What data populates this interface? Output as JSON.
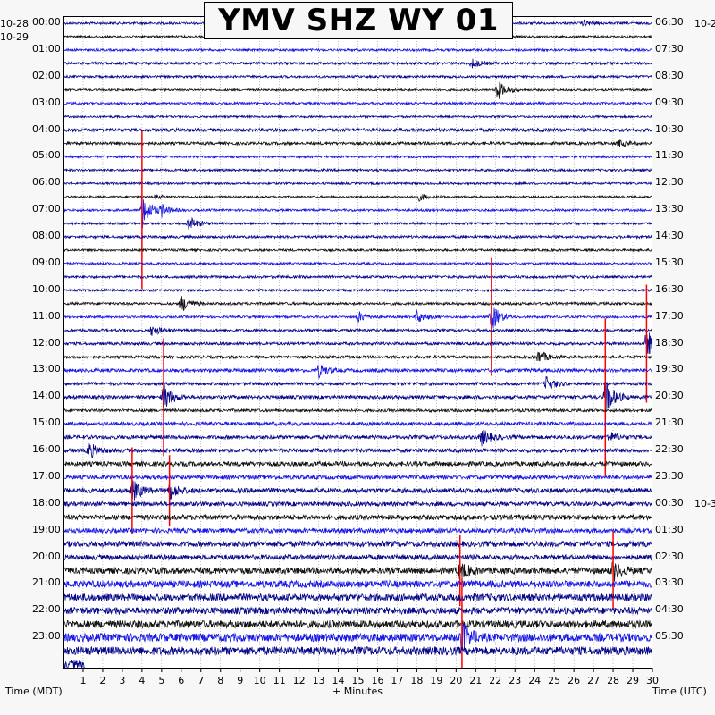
{
  "title": "YMV SHZ WY 01",
  "left_axis": {
    "label": "Time (MDT)",
    "date_top": "10-28",
    "date_start": "10-29",
    "ticks": [
      "00:00",
      "01:00",
      "02:00",
      "03:00",
      "04:00",
      "05:00",
      "06:00",
      "07:00",
      "08:00",
      "09:00",
      "10:00",
      "11:00",
      "12:00",
      "13:00",
      "14:00",
      "15:00",
      "16:00",
      "17:00",
      "18:00",
      "19:00",
      "20:00",
      "21:00",
      "22:00",
      "23:00"
    ]
  },
  "right_axis": {
    "label": "Time (UTC)",
    "date_top": "10-2",
    "date_mid": "10-3",
    "ticks": [
      "06:30",
      "07:30",
      "08:30",
      "09:30",
      "10:30",
      "11:30",
      "12:30",
      "13:30",
      "14:30",
      "15:30",
      "16:30",
      "17:30",
      "18:30",
      "19:30",
      "20:30",
      "21:30",
      "22:30",
      "23:30",
      "00:30",
      "01:30",
      "02:30",
      "03:30",
      "04:30",
      "05:30"
    ]
  },
  "x_axis": {
    "label": "+ Minutes",
    "ticks": [
      "1",
      "2",
      "3",
      "4",
      "5",
      "6",
      "7",
      "8",
      "9",
      "10",
      "11",
      "12",
      "13",
      "14",
      "15",
      "16",
      "17",
      "18",
      "19",
      "20",
      "21",
      "22",
      "23",
      "24",
      "25",
      "26",
      "27",
      "28",
      "29",
      "30"
    ]
  },
  "chart_data": {
    "type": "line",
    "title": "YMV SHZ WY 01",
    "xlabel": "+ Minutes",
    "ylabel_left": "Time (MDT)",
    "ylabel_right": "Time (UTC)",
    "xlim": [
      0,
      30
    ],
    "rows_per_hour": 2,
    "row_minutes": 30,
    "trace_count": 49,
    "trace_colors": [
      "#0a0a8c",
      "#141414",
      "#1a1ae6",
      "#0a0a8c"
    ],
    "clip_color": "#ff0000",
    "y_ticks_left": [
      "00:00",
      "01:00",
      "02:00",
      "03:00",
      "04:00",
      "05:00",
      "06:00",
      "07:00",
      "08:00",
      "09:00",
      "10:00",
      "11:00",
      "12:00",
      "13:00",
      "14:00",
      "15:00",
      "16:00",
      "17:00",
      "18:00",
      "19:00",
      "20:00",
      "21:00",
      "22:00",
      "23:00"
    ],
    "y_ticks_right": [
      "06:30",
      "07:30",
      "08:30",
      "09:30",
      "10:30",
      "11:30",
      "12:30",
      "13:30",
      "14:30",
      "15:30",
      "16:30",
      "17:30",
      "18:30",
      "19:30",
      "20:30",
      "21:30",
      "22:30",
      "23:30",
      "00:30",
      "01:30",
      "02:30",
      "03:30",
      "04:30",
      "05:30"
    ],
    "x_ticks": [
      1,
      2,
      3,
      4,
      5,
      6,
      7,
      8,
      9,
      10,
      11,
      12,
      13,
      14,
      15,
      16,
      17,
      18,
      19,
      20,
      21,
      22,
      23,
      24,
      25,
      26,
      27,
      28,
      29,
      30
    ],
    "row_noise": [
      0.8,
      0.7,
      0.8,
      0.9,
      0.8,
      0.7,
      0.8,
      0.7,
      1.2,
      1.0,
      0.8,
      0.8,
      0.7,
      0.7,
      0.8,
      0.8,
      0.9,
      0.8,
      0.8,
      0.9,
      0.8,
      0.9,
      0.8,
      0.9,
      1.0,
      1.0,
      1.2,
      1.1,
      1.2,
      1.0,
      1.3,
      1.3,
      1.4,
      1.6,
      1.4,
      1.7,
      1.5,
      1.8,
      1.6,
      2.0,
      1.8,
      2.2,
      2.4,
      2.5,
      2.4,
      2.6,
      2.8,
      2.9,
      2.7
    ],
    "events": [
      {
        "row": 0,
        "minute": 26.5,
        "amp": 6
      },
      {
        "row": 3,
        "minute": 20.8,
        "amp": 10
      },
      {
        "row": 5,
        "minute": 22.1,
        "amp": 22
      },
      {
        "row": 9,
        "minute": 28.3,
        "amp": 6
      },
      {
        "row": 13,
        "minute": 18.1,
        "amp": 8
      },
      {
        "row": 13,
        "minute": 4.7,
        "amp": 4
      },
      {
        "row": 14,
        "minute": 4.0,
        "amp": 40,
        "clip": true
      },
      {
        "row": 14,
        "minute": 5.0,
        "amp": 12
      },
      {
        "row": 15,
        "minute": 6.4,
        "amp": 16
      },
      {
        "row": 21,
        "minute": 6.0,
        "amp": 18
      },
      {
        "row": 22,
        "minute": 15.0,
        "amp": 12
      },
      {
        "row": 22,
        "minute": 18.0,
        "amp": 14
      },
      {
        "row": 22,
        "minute": 21.8,
        "amp": 30,
        "clip": true
      },
      {
        "row": 23,
        "minute": 4.5,
        "amp": 12
      },
      {
        "row": 24,
        "minute": 29.7,
        "amp": 30,
        "clip": true
      },
      {
        "row": 25,
        "minute": 24.2,
        "amp": 14
      },
      {
        "row": 26,
        "minute": 13.0,
        "amp": 14
      },
      {
        "row": 27,
        "minute": 24.6,
        "amp": 16
      },
      {
        "row": 28,
        "minute": 5.1,
        "amp": 30,
        "clip": true
      },
      {
        "row": 28,
        "minute": 27.6,
        "amp": 40,
        "clip": true
      },
      {
        "row": 31,
        "minute": 21.3,
        "amp": 18
      },
      {
        "row": 31,
        "minute": 27.8,
        "amp": 10
      },
      {
        "row": 32,
        "minute": 1.3,
        "amp": 16
      },
      {
        "row": 35,
        "minute": 3.5,
        "amp": 22,
        "clip": true
      },
      {
        "row": 35,
        "minute": 5.4,
        "amp": 18,
        "clip": true
      },
      {
        "row": 41,
        "minute": 20.2,
        "amp": 18,
        "clip": true
      },
      {
        "row": 41,
        "minute": 28.0,
        "amp": 20,
        "clip": true
      },
      {
        "row": 46,
        "minute": 20.3,
        "amp": 30,
        "clip": true
      }
    ]
  }
}
